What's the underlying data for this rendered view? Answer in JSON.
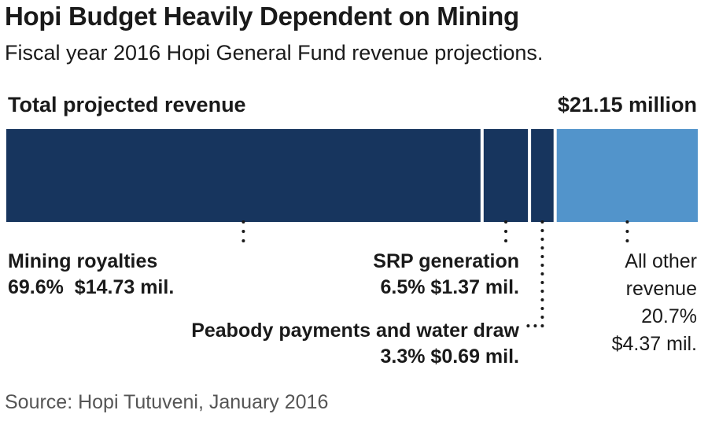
{
  "chart_data": {
    "type": "bar",
    "orientation": "horizontal-stacked",
    "title": "Hopi Budget Heavily Dependent on Mining",
    "subtitle": "Fiscal year 2016 Hopi General Fund revenue projections.",
    "total_label": "Total projected revenue",
    "total_value": "$21.15 million",
    "units": "percent of total",
    "segments": [
      {
        "name": "Mining royalties",
        "percent": 69.6,
        "percent_label": "69.6%",
        "amount_label": "$14.73 mil.",
        "color": "#17355e"
      },
      {
        "name": "SRP generation",
        "percent": 6.5,
        "percent_label": "6.5%",
        "amount_label": "$1.37 mil.",
        "color": "#17355e"
      },
      {
        "name": "Peabody payments and water draw",
        "percent": 3.3,
        "percent_label": "3.3%",
        "amount_label": "$0.69 mil.",
        "color": "#17355e"
      },
      {
        "name_line1": "All other",
        "name_line2": "revenue",
        "percent": 20.7,
        "percent_label": "20.7%",
        "amount_label": "$4.37 mil.",
        "color": "#5294cb"
      }
    ],
    "source": "Source: Hopi Tutuveni, January 2016"
  }
}
